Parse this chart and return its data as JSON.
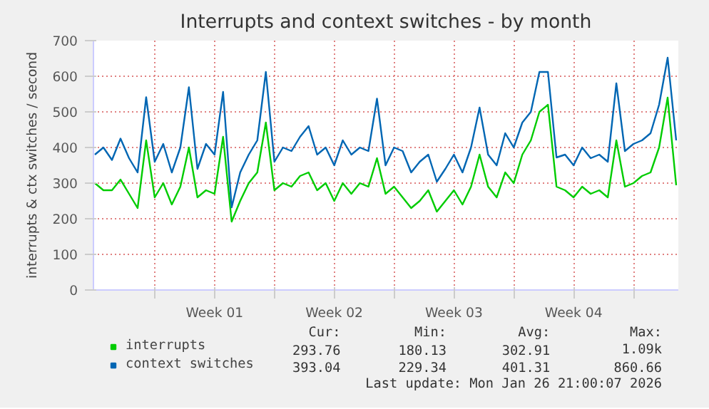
{
  "chart_data": {
    "type": "line",
    "title": "Interrupts and context switches - by month",
    "ylabel": "interrupts & ctx switches / second",
    "x": [
      "2025-12-23T18:00",
      "2025-12-24T06:00",
      "2025-12-24T18:00",
      "2025-12-25T06:00",
      "2025-12-25T18:00",
      "2025-12-26T06:00",
      "2025-12-26T18:00",
      "2025-12-27T06:00",
      "2025-12-27T18:00",
      "2025-12-28T06:00",
      "2025-12-28T18:00",
      "2025-12-29T06:00",
      "2025-12-29T18:00",
      "2025-12-30T06:00",
      "2025-12-30T18:00",
      "2025-12-31T06:00",
      "2025-12-31T18:00",
      "2026-01-01T06:00",
      "2026-01-01T18:00",
      "2026-01-02T06:00",
      "2026-01-02T18:00",
      "2026-01-03T06:00",
      "2026-01-03T18:00",
      "2026-01-04T06:00",
      "2026-01-04T18:00",
      "2026-01-05T06:00",
      "2026-01-05T18:00",
      "2026-01-06T06:00",
      "2026-01-06T18:00",
      "2026-01-07T06:00",
      "2026-01-07T18:00",
      "2026-01-08T06:00",
      "2026-01-08T18:00",
      "2026-01-09T06:00",
      "2026-01-09T18:00",
      "2026-01-10T06:00",
      "2026-01-10T18:00",
      "2026-01-11T06:00",
      "2026-01-11T18:00",
      "2026-01-12T06:00",
      "2026-01-12T18:00",
      "2026-01-13T06:00",
      "2026-01-13T18:00",
      "2026-01-14T06:00",
      "2026-01-14T18:00",
      "2026-01-15T06:00",
      "2026-01-15T18:00",
      "2026-01-16T06:00",
      "2026-01-16T18:00",
      "2026-01-17T06:00",
      "2026-01-17T18:00",
      "2026-01-18T06:00",
      "2026-01-18T18:00",
      "2026-01-19T06:00",
      "2026-01-19T18:00",
      "2026-01-20T06:00",
      "2026-01-20T18:00",
      "2026-01-21T06:00",
      "2026-01-21T18:00",
      "2026-01-22T06:00",
      "2026-01-22T18:00",
      "2026-01-23T06:00",
      "2026-01-23T18:00",
      "2026-01-24T06:00",
      "2026-01-24T18:00",
      "2026-01-25T06:00",
      "2026-01-25T18:00",
      "2026-01-26T06:00",
      "2026-01-26T18:00"
    ],
    "series": [
      {
        "name": "interrupts",
        "color": "#00cc00",
        "values": [
          300,
          280,
          280,
          310,
          270,
          230,
          420,
          260,
          300,
          240,
          290,
          400,
          260,
          280,
          270,
          430,
          192,
          250,
          300,
          330,
          470,
          280,
          300,
          290,
          320,
          330,
          280,
          300,
          250,
          300,
          270,
          300,
          290,
          370,
          270,
          290,
          260,
          230,
          250,
          280,
          220,
          250,
          280,
          240,
          290,
          380,
          290,
          260,
          330,
          300,
          380,
          420,
          500,
          520,
          290,
          280,
          260,
          290,
          270,
          280,
          260,
          420,
          290,
          300,
          320,
          330,
          400,
          540,
          294
        ]
      },
      {
        "name": "context switches",
        "color": "#0066b3",
        "values": [
          380,
          400,
          365,
          425,
          370,
          330,
          541,
          360,
          410,
          330,
          400,
          569,
          340,
          410,
          380,
          556,
          232,
          330,
          380,
          420,
          612,
          360,
          400,
          390,
          430,
          460,
          380,
          400,
          350,
          420,
          380,
          400,
          390,
          537,
          350,
          400,
          390,
          330,
          360,
          380,
          304,
          340,
          380,
          330,
          400,
          512,
          380,
          350,
          440,
          400,
          470,
          500,
          612,
          612,
          372,
          380,
          350,
          400,
          370,
          380,
          360,
          580,
          390,
          410,
          420,
          440,
          520,
          652,
          420
        ]
      }
    ],
    "xlim": [
      "2025-12-23T16:00",
      "2026-01-26T21:00"
    ],
    "xticks": [
      {
        "value": "2025-12-27T06:00",
        "label": null
      },
      {
        "value": "2025-12-30T18:00",
        "label": "Week 01"
      },
      {
        "value": "2026-01-03T06:00",
        "label": null
      },
      {
        "value": "2026-01-06T18:00",
        "label": "Week 02"
      },
      {
        "value": "2026-01-10T06:00",
        "label": null
      },
      {
        "value": "2026-01-13T18:00",
        "label": "Week 03"
      },
      {
        "value": "2026-01-17T06:00",
        "label": null
      },
      {
        "value": "2026-01-20T18:00",
        "label": "Week 04"
      },
      {
        "value": "2026-01-24T06:00",
        "label": null
      }
    ],
    "ylim": [
      0,
      700
    ],
    "yticks": [
      0,
      100,
      200,
      300,
      400,
      500,
      600,
      700
    ],
    "grid": true,
    "legend": "bottom",
    "line_style": "solid",
    "annotations": [
      "Cur:",
      "Min:",
      "Avg:",
      "Max:",
      "293.76",
      "180.13",
      "302.91",
      "1.09k",
      "393.04",
      "229.34",
      "401.31",
      "860.66",
      "Last update: Mon Jan 26 21:00:07 2026"
    ]
  }
}
